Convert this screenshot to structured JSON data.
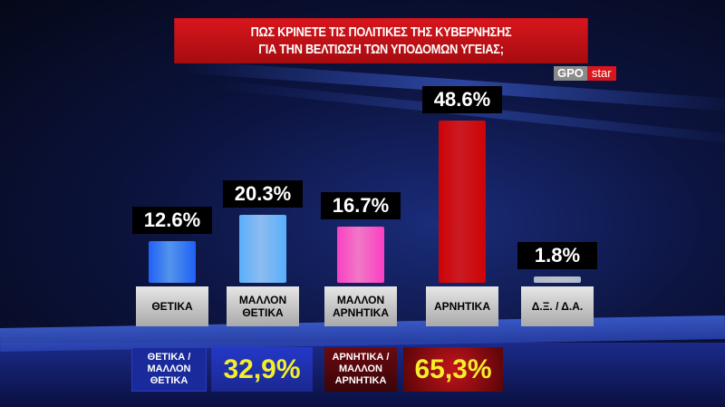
{
  "header": {
    "title_line1": "ΠΩΣ ΚΡΙΝΕΤΕ ΤΙΣ ΠΟΛΙΤΙΚΕΣ ΤΗΣ ΚΥΒΕΡΝΗΣΗΣ",
    "title_line2": "ΓΙΑ ΤΗΝ ΒΕΛΤΙΩΣΗ ΤΩΝ ΥΠΟΔΟΜΩΝ ΥΓΕΙΑΣ;"
  },
  "logo": {
    "gpo": "GPO",
    "star": "star"
  },
  "chart_data": {
    "type": "bar",
    "title": "ΠΩΣ ΚΡΙΝΕΤΕ ΤΙΣ ΠΟΛΙΤΙΚΕΣ ΤΗΣ ΚΥΒΕΡΝΗΣΗΣ ΓΙΑ ΤΗΝ ΒΕΛΤΙΩΣΗ ΤΩΝ ΥΠΟΔΟΜΩΝ ΥΓΕΙΑΣ;",
    "categories": [
      "ΘΕΤΙΚΑ",
      "ΜΑΛΛΟΝ\nΘΕΤΙΚΑ",
      "ΜΑΛΛΟΝ\nΑΡΝΗΤΙΚΑ",
      "ΑΡΝΗΤΙΚΑ",
      "Δ.Ξ. / Δ.Α."
    ],
    "values": [
      12.6,
      20.3,
      16.7,
      48.6,
      1.8
    ],
    "data_labels": [
      "12.6%",
      "20.3%",
      "16.7%",
      "48.6%",
      "1.8%"
    ],
    "colors": [
      "#3f6fe0",
      "#6a9ae8",
      "#e85aa8",
      "#b0141a",
      "#9aa0b0"
    ],
    "ylim": [
      0,
      50
    ]
  },
  "summary": [
    {
      "label": "ΘΕΤΙΚΑ /\nΜΑΛΛΟΝ\nΘΕΤΙΚΑ",
      "value": "32,9%"
    },
    {
      "label": "ΑΡΝΗΤΙΚΑ /\nΜΑΛΛΟΝ\nΑΡΝΗΤΙΚΑ",
      "value": "65,3%"
    }
  ]
}
